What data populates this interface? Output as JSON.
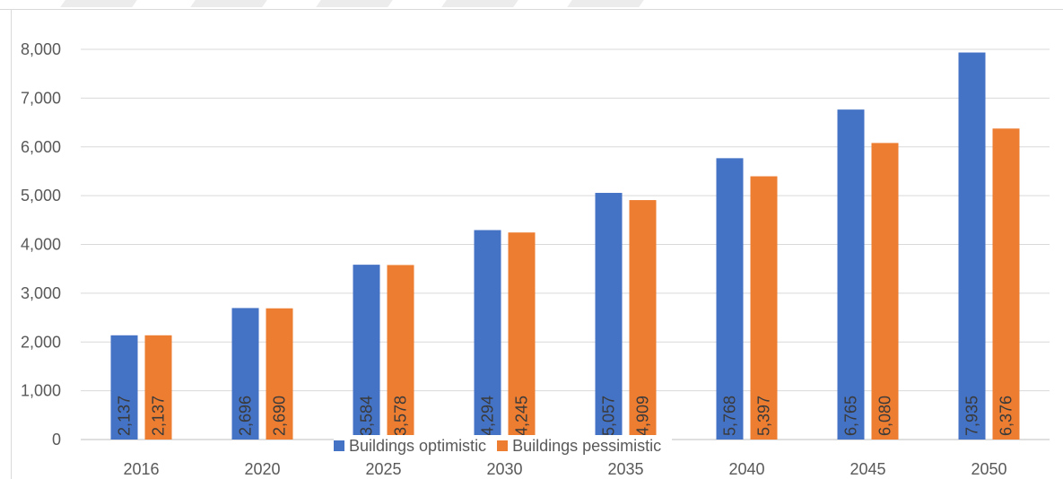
{
  "chart_data": {
    "type": "bar",
    "title": "",
    "xlabel": "",
    "ylabel": "",
    "categories": [
      "2016",
      "2020",
      "2025",
      "2030",
      "2035",
      "2040",
      "2045",
      "2050"
    ],
    "series": [
      {
        "name": "Buildings optimistic",
        "values": [
          2137,
          2696,
          3584,
          4294,
          5057,
          5768,
          6765,
          7935
        ],
        "color": "#4472C4"
      },
      {
        "name": "Buildings pessimistic",
        "values": [
          2137,
          2690,
          3578,
          4245,
          4909,
          5397,
          6080,
          6376
        ],
        "color": "#ED7D31"
      }
    ],
    "data_labels": [
      [
        "2,137",
        "2,696",
        "3,584",
        "4,294",
        "5,057",
        "5,768",
        "6,765",
        "7,935"
      ],
      [
        "2,137",
        "2,690",
        "3,578",
        "4,245",
        "4,909",
        "5,397",
        "6,080",
        "6,376"
      ]
    ],
    "ylim": [
      0,
      8000
    ],
    "yticks": [
      0,
      1000,
      2000,
      3000,
      4000,
      5000,
      6000,
      7000,
      8000
    ],
    "ytick_labels": [
      "0",
      "1,000",
      "2,000",
      "3,000",
      "4,000",
      "5,000",
      "6,000",
      "7,000",
      "8,000"
    ],
    "grid": true,
    "legend_position": "bottom",
    "data_label_orientation": "vertical"
  }
}
